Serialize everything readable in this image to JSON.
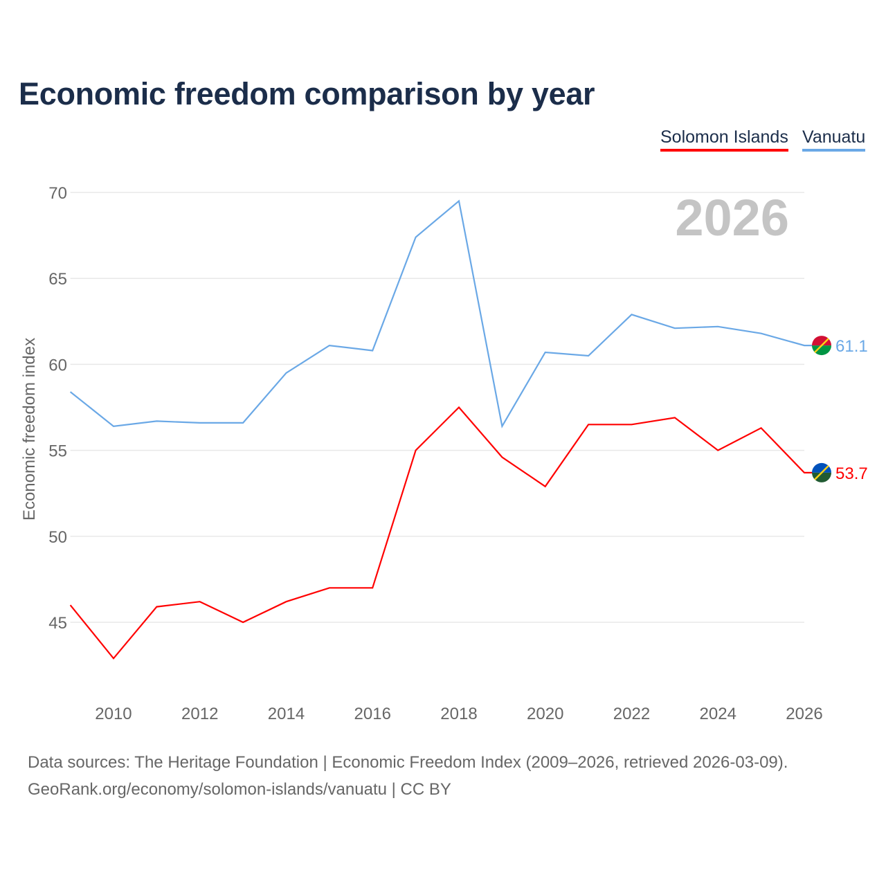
{
  "chart_data": {
    "type": "line",
    "title": "Economic freedom comparison by year",
    "xlabel": "",
    "ylabel": "Economic freedom index",
    "year_watermark": "2026",
    "x": [
      2009,
      2010,
      2011,
      2012,
      2013,
      2014,
      2015,
      2016,
      2017,
      2018,
      2019,
      2020,
      2021,
      2022,
      2023,
      2024,
      2025,
      2026
    ],
    "x_ticks": [
      2010,
      2012,
      2014,
      2016,
      2018,
      2020,
      2022,
      2024,
      2026
    ],
    "y_ticks": [
      45,
      50,
      55,
      60,
      65,
      70
    ],
    "ylim": [
      41.5,
      70
    ],
    "xlim": [
      2009,
      2026
    ],
    "grid": true,
    "legend_position": "top-right",
    "series": [
      {
        "name": "Solomon Islands",
        "color": "#ff0000",
        "end_label": "53.7",
        "values": [
          46.0,
          42.9,
          45.9,
          46.2,
          45.0,
          46.2,
          47.0,
          47.0,
          55.0,
          57.5,
          54.6,
          52.9,
          56.5,
          56.5,
          56.9,
          55.0,
          56.3,
          53.7
        ]
      },
      {
        "name": "Vanuatu",
        "color": "#6aa8e6",
        "end_label": "61.1",
        "values": [
          58.4,
          56.4,
          56.7,
          56.6,
          56.6,
          59.5,
          61.1,
          60.8,
          67.4,
          69.5,
          56.4,
          60.7,
          60.5,
          62.9,
          62.1,
          62.2,
          61.8,
          61.1
        ]
      }
    ]
  },
  "footer": {
    "line1": "Data sources: The Heritage Foundation | Economic Freedom Index (2009–2026, retrieved 2026-03-09).",
    "line2": "GeoRank.org/economy/solomon-islands/vanuatu | CC BY"
  }
}
